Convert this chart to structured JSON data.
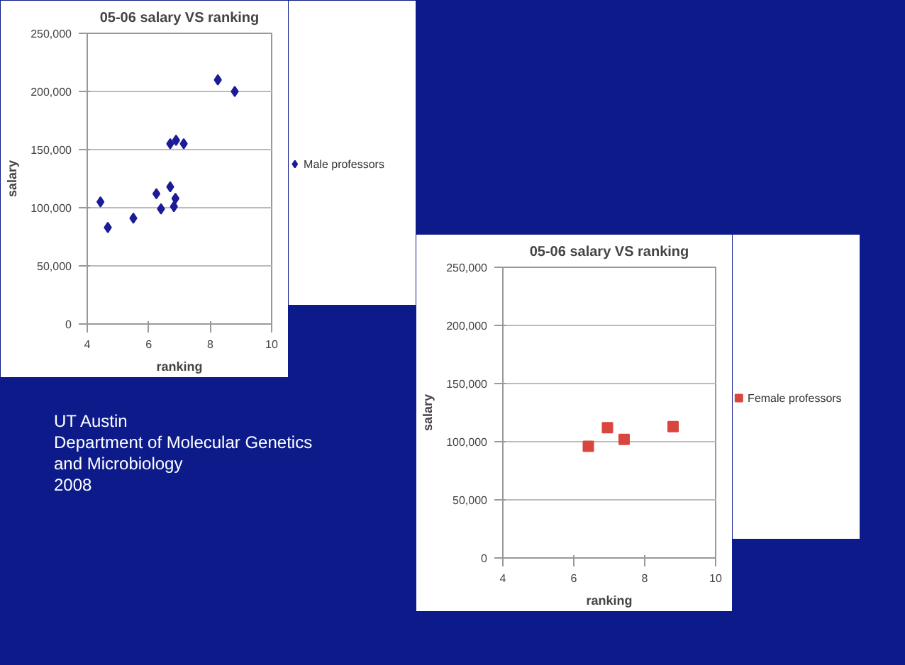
{
  "chart_data": [
    {
      "type": "scatter",
      "title": "05-06 salary VS ranking",
      "xlabel": "ranking",
      "ylabel": "salary",
      "xlim": [
        4,
        10
      ],
      "xticks": [
        4,
        6,
        8,
        10
      ],
      "ylim": [
        0,
        250000
      ],
      "yticks": [
        {
          "value": 0,
          "label": "0"
        },
        {
          "value": 50000,
          "label": "50,000"
        },
        {
          "value": 100000,
          "label": "100,000"
        },
        {
          "value": 150000,
          "label": "150,000"
        },
        {
          "value": 200000,
          "label": "200,000"
        },
        {
          "value": 250000,
          "label": "250,000"
        }
      ],
      "grid": "y",
      "legend": "right",
      "marker": "diamond",
      "series": [
        {
          "name": "Male professors",
          "color": "#1c1c96",
          "x": [
            4.43,
            4.67,
            5.5,
            6.25,
            6.4,
            6.7,
            6.7,
            6.82,
            6.87,
            6.89,
            7.14,
            8.25,
            8.8
          ],
          "values": [
            105000,
            83000,
            91000,
            112000,
            99000,
            118000,
            155000,
            101000,
            108000,
            158000,
            155000,
            210000,
            200000
          ]
        }
      ]
    },
    {
      "type": "scatter",
      "title": "05-06 salary VS ranking",
      "xlabel": "ranking",
      "ylabel": "salary",
      "xlim": [
        4,
        10
      ],
      "xticks": [
        4,
        6,
        8,
        10
      ],
      "ylim": [
        0,
        250000
      ],
      "yticks": [
        {
          "value": 0,
          "label": "0"
        },
        {
          "value": 50000,
          "label": "50,000"
        },
        {
          "value": 100000,
          "label": "100,000"
        },
        {
          "value": 150000,
          "label": "150,000"
        },
        {
          "value": 200000,
          "label": "200,000"
        },
        {
          "value": 250000,
          "label": "250,000"
        }
      ],
      "grid": "y",
      "legend": "right",
      "marker": "square",
      "series": [
        {
          "name": "Female professors",
          "color": "#d9463f",
          "x": [
            6.41,
            6.95,
            7.42,
            8.8
          ],
          "values": [
            96000,
            112000,
            102000,
            113000
          ]
        }
      ]
    },
    {
      "type": "other",
      "annotations": [
        "UT Austin",
        "Department of Molecular Genetics and Microbiology",
        "2008"
      ]
    }
  ]
}
